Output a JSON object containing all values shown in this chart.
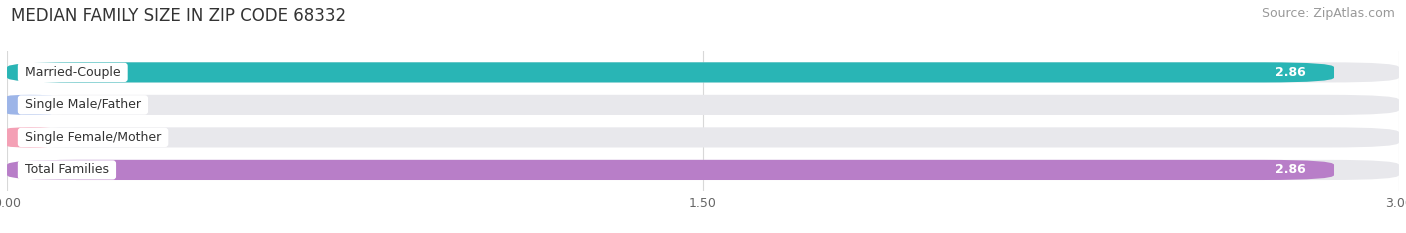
{
  "title": "MEDIAN FAMILY SIZE IN ZIP CODE 68332",
  "source": "Source: ZipAtlas.com",
  "categories": [
    "Married-Couple",
    "Single Male/Father",
    "Single Female/Mother",
    "Total Families"
  ],
  "values": [
    2.86,
    0.0,
    0.0,
    2.86
  ],
  "bar_colors": [
    "#29b5b5",
    "#9db5e8",
    "#f4a0b5",
    "#b87ec8"
  ],
  "bar_bg_color": "#e8e8ec",
  "xlim": [
    0,
    3.0
  ],
  "xticks": [
    0.0,
    1.5,
    3.0
  ],
  "xtick_labels": [
    "0.00",
    "1.50",
    "3.00"
  ],
  "title_fontsize": 12,
  "source_fontsize": 9,
  "tick_fontsize": 9,
  "bar_label_fontsize": 9,
  "value_fontsize": 9,
  "bar_height": 0.62,
  "bg_color": "#ffffff",
  "grid_color": "#d8d8d8",
  "label_text_color": "#333333",
  "value_text_color_inside": "#ffffff",
  "value_text_color_outside": "#555555"
}
